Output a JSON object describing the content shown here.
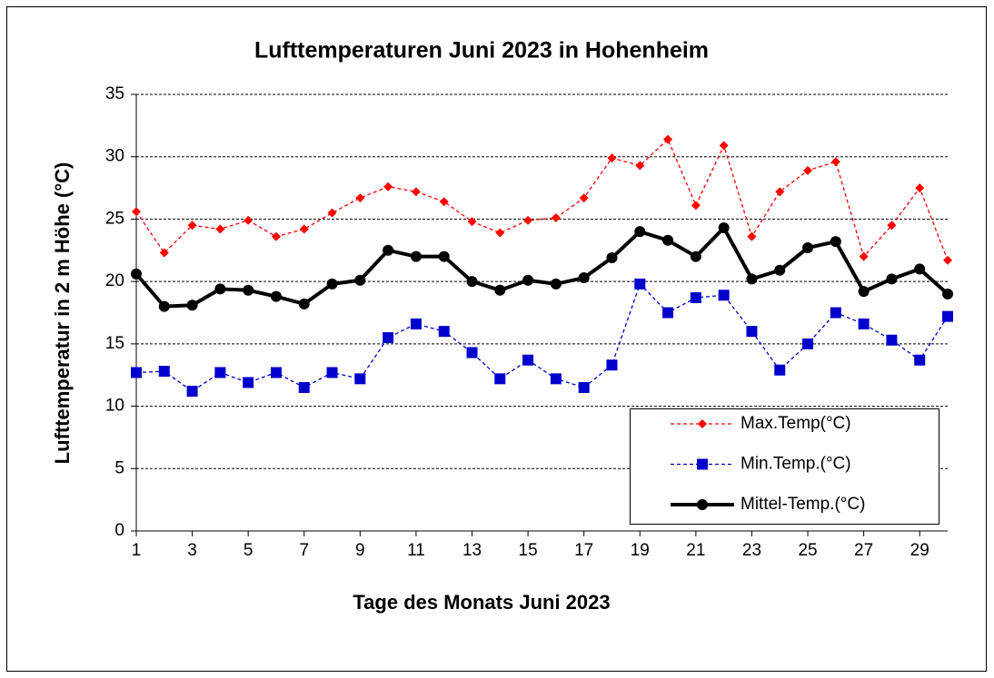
{
  "chart_data": {
    "type": "line",
    "title": "Lufttemperaturen Juni 2023 in Hohenheim",
    "x_label": "Tage des Monats Juni 2023",
    "y_label": "Lufttemperatur in 2 m Höhe (°C)",
    "x": [
      1,
      2,
      3,
      4,
      5,
      6,
      7,
      8,
      9,
      10,
      11,
      12,
      13,
      14,
      15,
      16,
      17,
      18,
      19,
      20,
      21,
      22,
      23,
      24,
      25,
      26,
      27,
      28,
      29,
      30
    ],
    "xlim": [
      1,
      30
    ],
    "xticks": [
      1,
      3,
      5,
      7,
      9,
      11,
      13,
      15,
      17,
      19,
      21,
      23,
      25,
      27,
      29
    ],
    "ylim": [
      0,
      35
    ],
    "yticks": [
      0,
      5,
      10,
      15,
      20,
      25,
      30,
      35
    ],
    "grid": true,
    "legend": "lower right",
    "series": [
      {
        "name": "Max.Temp(°C)",
        "color": "#ff0000",
        "marker": "diamond",
        "style": "dashed",
        "values": [
          25.6,
          22.3,
          24.5,
          24.2,
          24.9,
          23.6,
          24.2,
          25.5,
          26.7,
          27.6,
          27.2,
          26.4,
          24.8,
          23.9,
          24.9,
          25.1,
          26.7,
          29.9,
          29.3,
          31.4,
          26.1,
          30.9,
          23.6,
          27.2,
          28.9,
          29.6,
          22.0,
          24.5,
          27.5,
          21.7
        ]
      },
      {
        "name": "Min.Temp.(°C)",
        "color": "#0000cc",
        "marker": "square",
        "style": "dashed",
        "values": [
          12.7,
          12.8,
          11.2,
          12.7,
          11.9,
          12.7,
          11.5,
          12.7,
          12.2,
          15.5,
          16.6,
          16.0,
          14.3,
          12.2,
          13.7,
          12.2,
          11.5,
          13.3,
          19.8,
          17.5,
          18.7,
          18.9,
          16.0,
          12.9,
          15.0,
          17.5,
          16.6,
          15.3,
          13.7,
          17.2
        ]
      },
      {
        "name": "Mittel-Temp.(°C)",
        "color": "#000000",
        "marker": "circle",
        "style": "solid",
        "values": [
          20.6,
          18.0,
          18.1,
          19.4,
          19.3,
          18.8,
          18.2,
          19.8,
          20.1,
          22.5,
          22.0,
          22.0,
          20.0,
          19.3,
          20.1,
          19.8,
          20.3,
          21.9,
          24.0,
          23.3,
          22.0,
          24.3,
          20.2,
          20.9,
          22.7,
          23.2,
          19.2,
          20.2,
          21.0,
          19.0
        ]
      }
    ]
  }
}
